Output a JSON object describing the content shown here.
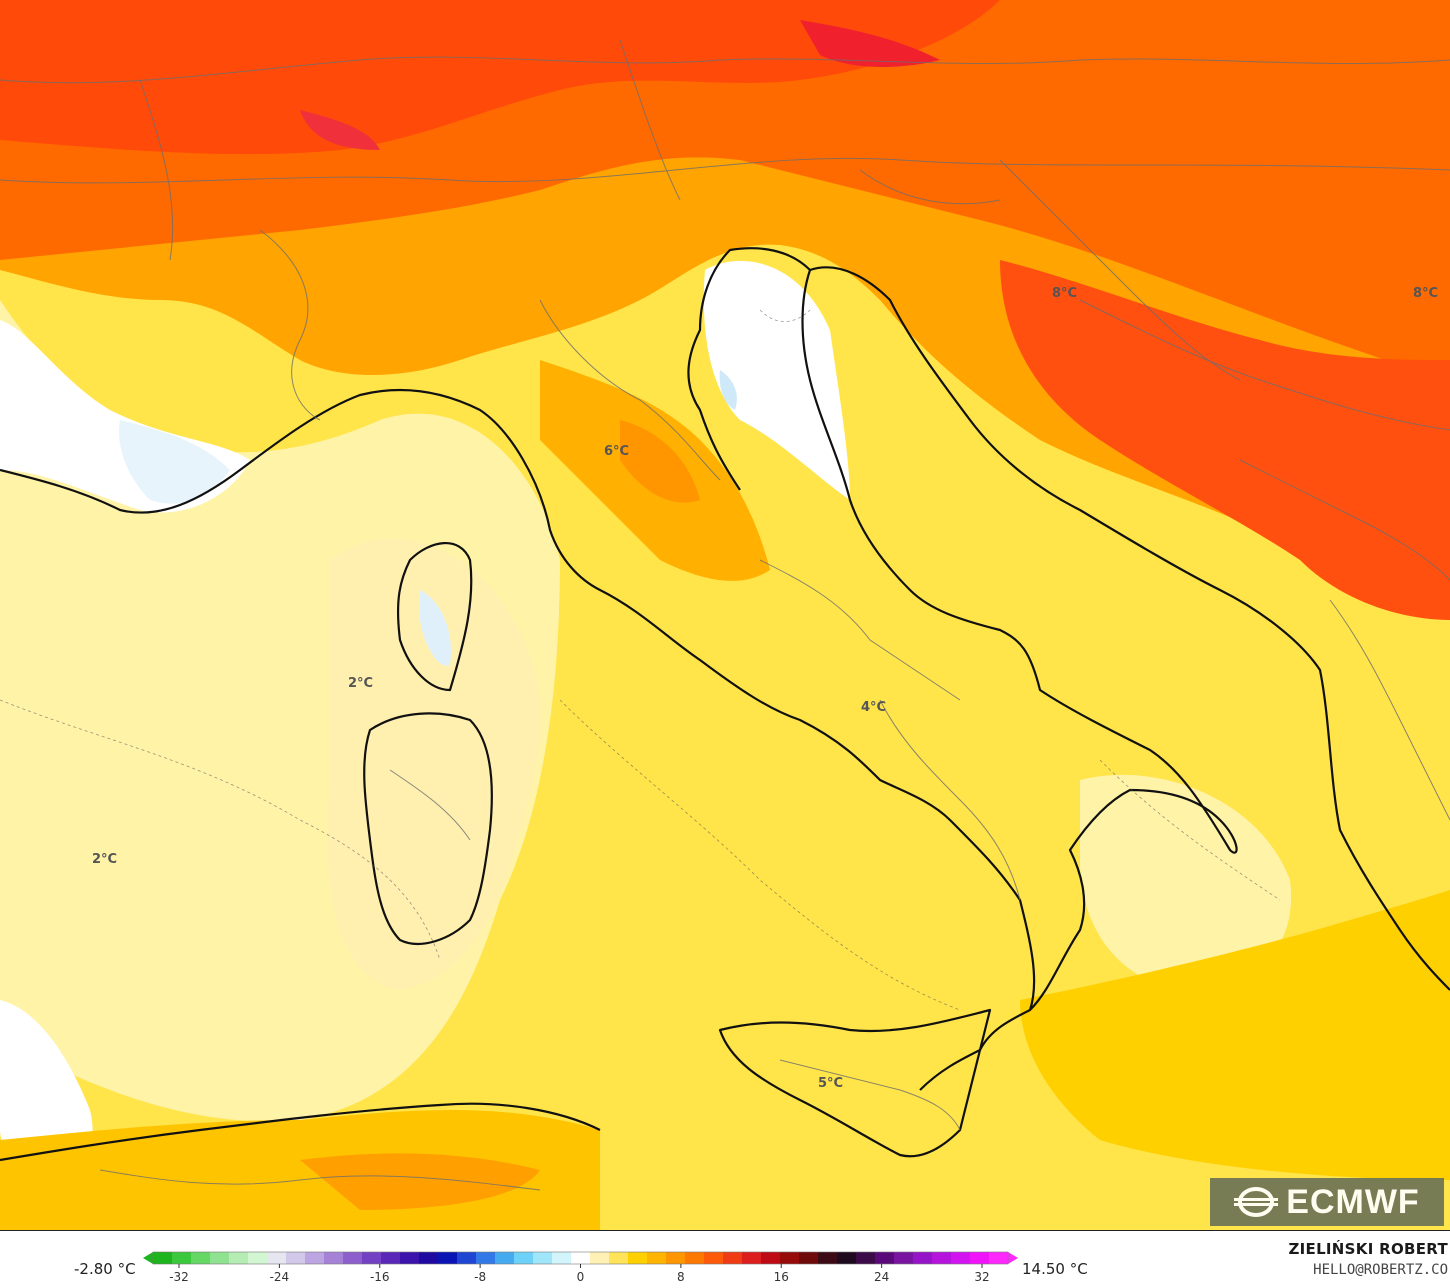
{
  "map": {
    "labels": [
      {
        "text": "8°C"
      },
      {
        "text": "8°C"
      },
      {
        "text": "6°C"
      },
      {
        "text": "2°C"
      },
      {
        "text": "2°C"
      },
      {
        "text": "4°C"
      },
      {
        "text": "5°C"
      }
    ]
  },
  "colorbar": {
    "min_label": "-2.80 °C",
    "max_label": "14.50 °C",
    "ticks": [
      "-32",
      "-24",
      "-16",
      "-8",
      "0",
      "8",
      "16",
      "24",
      "32"
    ],
    "colors": [
      "#1eb41e",
      "#3cc83c",
      "#64d764",
      "#8fe28f",
      "#b4ecb4",
      "#d2f5d2",
      "#e6e6f0",
      "#d2c8ea",
      "#bca5e0",
      "#a582d6",
      "#8c5fcc",
      "#7341c3",
      "#5a28b9",
      "#3c14ac",
      "#1e0aa0",
      "#0a14b4",
      "#1e46d2",
      "#3278e6",
      "#46aaf0",
      "#6ed2f8",
      "#a0e6fa",
      "#d2f5fc",
      "#ffffff",
      "#fff0b4",
      "#ffe45a",
      "#ffd000",
      "#ffb400",
      "#ff9600",
      "#ff7800",
      "#ff5a0a",
      "#f03c14",
      "#dc1e1e",
      "#be0a14",
      "#960a0a",
      "#6e0a0a",
      "#3c0a14",
      "#1e0a1e",
      "#3c0a46",
      "#5a0a78",
      "#7814a0",
      "#9614c8",
      "#b414dc",
      "#d214f0",
      "#f014fa",
      "#ff28ff"
    ]
  },
  "branding": {
    "logo_text": "ECMWF",
    "author": "ZIELIŃSKI ROBERT",
    "email": "HELLO@ROBERTZ.CO"
  }
}
